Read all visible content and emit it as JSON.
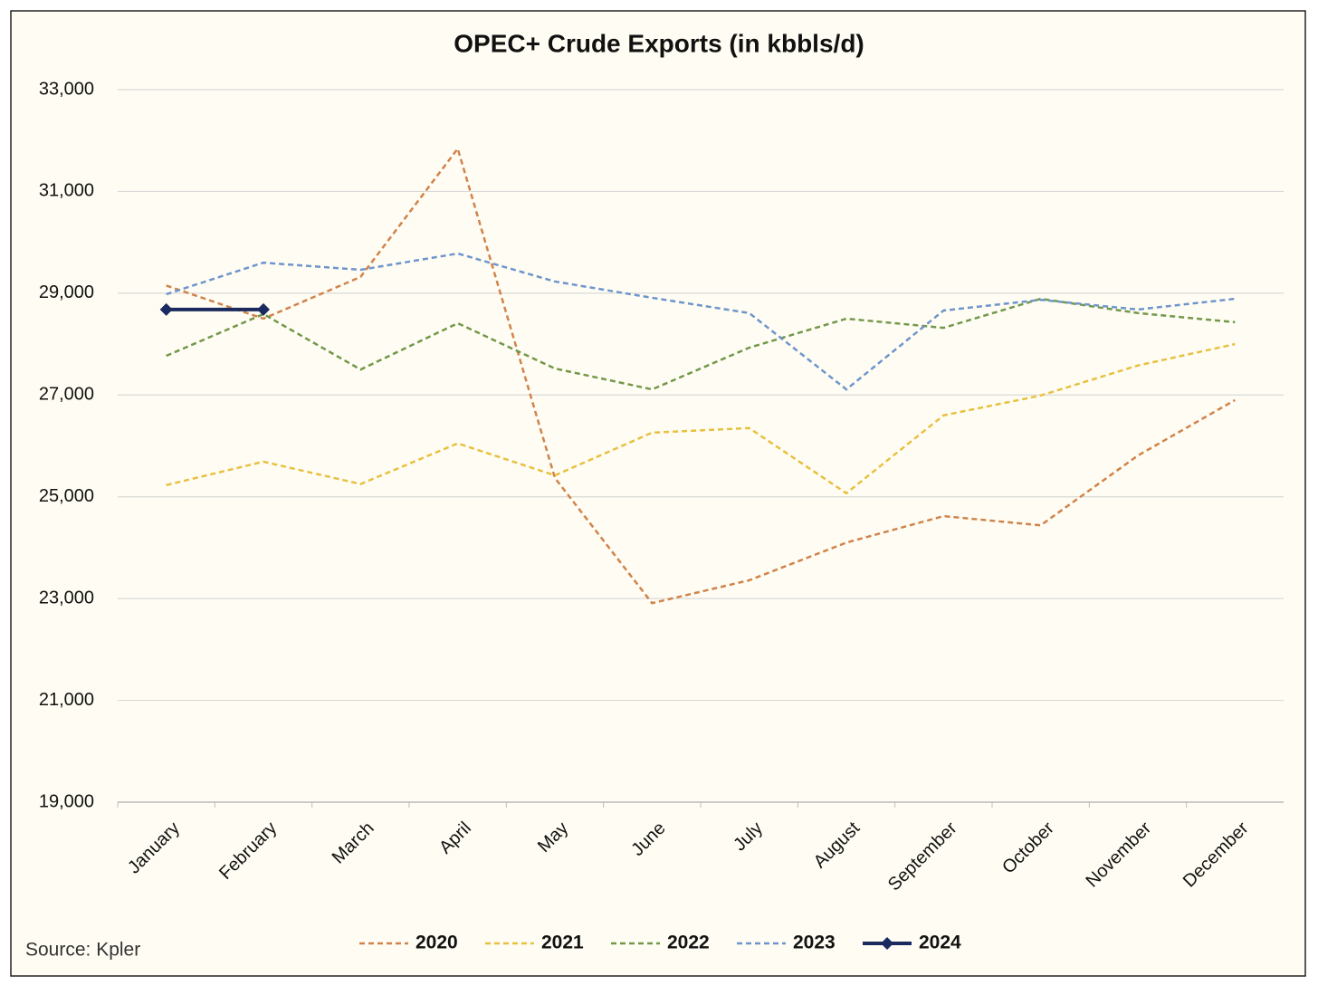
{
  "chart_data": {
    "type": "line",
    "title": "OPEC+ Crude Exports (in kbbls/d)",
    "source": "Source: Kpler",
    "categories": [
      "January",
      "February",
      "March",
      "April",
      "May",
      "June",
      "July",
      "August",
      "September",
      "October",
      "November",
      "December"
    ],
    "series": [
      {
        "name": "2020",
        "color": "#d0834a",
        "values": [
          29150,
          28500,
          29320,
          31840,
          25370,
          22910,
          23360,
          24100,
          24620,
          24440,
          25810,
          26900
        ]
      },
      {
        "name": "2021",
        "color": "#e8c040",
        "values": [
          25230,
          25690,
          25250,
          26050,
          25420,
          26260,
          26350,
          25070,
          26600,
          26990,
          27580,
          28000
        ]
      },
      {
        "name": "2022",
        "color": "#72984a",
        "values": [
          27770,
          28590,
          27500,
          28410,
          27520,
          27110,
          27930,
          28500,
          28320,
          28890,
          28610,
          28430
        ]
      },
      {
        "name": "2023",
        "color": "#6e95cc",
        "values": [
          28980,
          29600,
          29460,
          29780,
          29230,
          28910,
          28610,
          27110,
          28660,
          28870,
          28680,
          28890
        ]
      },
      {
        "name": "2024",
        "color": "#1a2a5e",
        "values": [
          28680,
          28680,
          null,
          null,
          null,
          null,
          null,
          null,
          null,
          null,
          null,
          null
        ]
      }
    ],
    "ylim": [
      19000,
      33000
    ],
    "yticks": [
      {
        "value": 19000,
        "label": "19,000"
      },
      {
        "value": 21000,
        "label": "21,000"
      },
      {
        "value": 23000,
        "label": "23,000"
      },
      {
        "value": 25000,
        "label": "25,000"
      },
      {
        "value": 27000,
        "label": "27,000"
      },
      {
        "value": 29000,
        "label": "29,000"
      },
      {
        "value": 31000,
        "label": "31,000"
      },
      {
        "value": 33000,
        "label": "33,000"
      }
    ],
    "grid": true,
    "legend": "bottom"
  }
}
